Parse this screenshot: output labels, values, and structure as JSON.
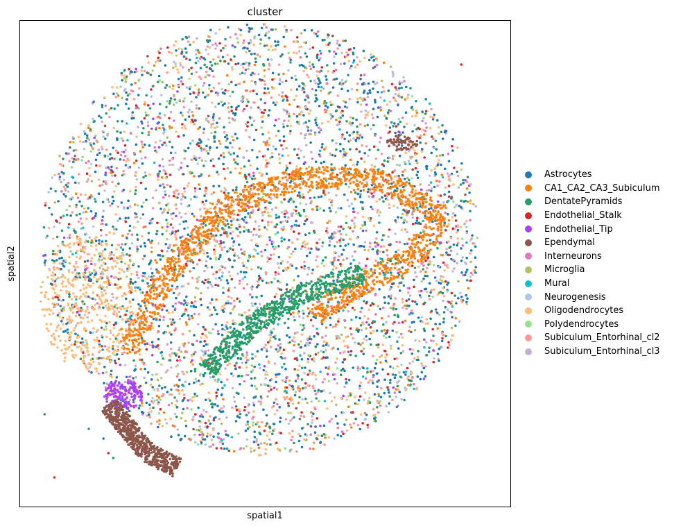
{
  "chart_data": {
    "type": "scatter",
    "title": "cluster",
    "xlabel": "spatial1",
    "ylabel": "spatial2",
    "grid": false,
    "xticks": [],
    "yticks": [],
    "legend": {
      "position": "right",
      "items": [
        {
          "name": "Astrocytes",
          "color": "#1f77b4"
        },
        {
          "name": "CA1_CA2_CA3_Subiculum",
          "color": "#ff7f0e"
        },
        {
          "name": "DentatePyramids",
          "color": "#279e68"
        },
        {
          "name": "Endothelial_Stalk",
          "color": "#d62728"
        },
        {
          "name": "Endothelial_Tip",
          "color": "#aa40fc"
        },
        {
          "name": "Ependymal",
          "color": "#8c564b"
        },
        {
          "name": "Interneurons",
          "color": "#e377c2"
        },
        {
          "name": "Microglia",
          "color": "#b5bd61"
        },
        {
          "name": "Mural",
          "color": "#17becf"
        },
        {
          "name": "Neurogenesis",
          "color": "#aec7e8"
        },
        {
          "name": "Oligodendrocytes",
          "color": "#ffbb78"
        },
        {
          "name": "Polydendrocytes",
          "color": "#98df8a"
        },
        {
          "name": "Subiculum_Entorhinal_cl2",
          "color": "#ff9896"
        },
        {
          "name": "Subiculum_Entorhinal_cl3",
          "color": "#c5b0d5"
        }
      ]
    },
    "regions": [
      {
        "kind": "disk",
        "center": [
          0.49,
          0.45
        ],
        "radius": 0.445,
        "note_color": "mixed"
      },
      {
        "kind": "band",
        "cluster": "CA1_CA2_CA3_Subiculum",
        "path": [
          [
            0.22,
            0.68
          ],
          [
            0.3,
            0.52
          ],
          [
            0.42,
            0.38
          ],
          [
            0.58,
            0.32
          ],
          [
            0.74,
            0.33
          ],
          [
            0.86,
            0.4
          ],
          [
            0.8,
            0.49
          ],
          [
            0.66,
            0.56
          ],
          [
            0.6,
            0.61
          ]
        ]
      },
      {
        "kind": "band",
        "cluster": "DentatePyramids",
        "path": [
          [
            0.38,
            0.72
          ],
          [
            0.48,
            0.62
          ],
          [
            0.58,
            0.56
          ],
          [
            0.7,
            0.52
          ]
        ]
      },
      {
        "kind": "cluster",
        "cluster": "Endothelial_Tip",
        "center": [
          0.21,
          0.77
        ]
      },
      {
        "kind": "band",
        "cluster": "Ependymal",
        "path": [
          [
            0.18,
            0.79
          ],
          [
            0.26,
            0.89
          ],
          [
            0.32,
            0.92
          ]
        ]
      },
      {
        "kind": "cluster",
        "cluster": "Ependymal",
        "center": [
          0.78,
          0.25
        ]
      },
      {
        "kind": "cluster",
        "cluster": "Oligodendrocytes",
        "center": [
          0.14,
          0.58
        ]
      }
    ]
  }
}
